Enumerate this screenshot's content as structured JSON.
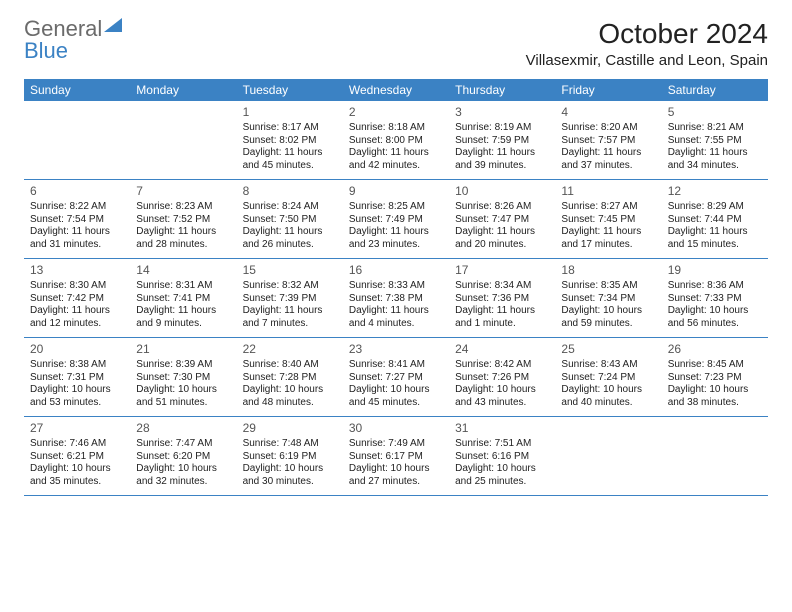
{
  "brand": {
    "part1": "General",
    "part2": "Blue"
  },
  "title": "October 2024",
  "location": "Villasexmir, Castille and Leon, Spain",
  "colors": {
    "header_bg": "#3b82c4",
    "header_text": "#ffffff",
    "border": "#3b82c4",
    "logo_gray": "#6b6b6b",
    "logo_blue": "#3b82c4"
  },
  "day_names": [
    "Sunday",
    "Monday",
    "Tuesday",
    "Wednesday",
    "Thursday",
    "Friday",
    "Saturday"
  ],
  "weeks": [
    [
      null,
      null,
      {
        "n": "1",
        "sr": "Sunrise: 8:17 AM",
        "ss": "Sunset: 8:02 PM",
        "dl": "Daylight: 11 hours and 45 minutes."
      },
      {
        "n": "2",
        "sr": "Sunrise: 8:18 AM",
        "ss": "Sunset: 8:00 PM",
        "dl": "Daylight: 11 hours and 42 minutes."
      },
      {
        "n": "3",
        "sr": "Sunrise: 8:19 AM",
        "ss": "Sunset: 7:59 PM",
        "dl": "Daylight: 11 hours and 39 minutes."
      },
      {
        "n": "4",
        "sr": "Sunrise: 8:20 AM",
        "ss": "Sunset: 7:57 PM",
        "dl": "Daylight: 11 hours and 37 minutes."
      },
      {
        "n": "5",
        "sr": "Sunrise: 8:21 AM",
        "ss": "Sunset: 7:55 PM",
        "dl": "Daylight: 11 hours and 34 minutes."
      }
    ],
    [
      {
        "n": "6",
        "sr": "Sunrise: 8:22 AM",
        "ss": "Sunset: 7:54 PM",
        "dl": "Daylight: 11 hours and 31 minutes."
      },
      {
        "n": "7",
        "sr": "Sunrise: 8:23 AM",
        "ss": "Sunset: 7:52 PM",
        "dl": "Daylight: 11 hours and 28 minutes."
      },
      {
        "n": "8",
        "sr": "Sunrise: 8:24 AM",
        "ss": "Sunset: 7:50 PM",
        "dl": "Daylight: 11 hours and 26 minutes."
      },
      {
        "n": "9",
        "sr": "Sunrise: 8:25 AM",
        "ss": "Sunset: 7:49 PM",
        "dl": "Daylight: 11 hours and 23 minutes."
      },
      {
        "n": "10",
        "sr": "Sunrise: 8:26 AM",
        "ss": "Sunset: 7:47 PM",
        "dl": "Daylight: 11 hours and 20 minutes."
      },
      {
        "n": "11",
        "sr": "Sunrise: 8:27 AM",
        "ss": "Sunset: 7:45 PM",
        "dl": "Daylight: 11 hours and 17 minutes."
      },
      {
        "n": "12",
        "sr": "Sunrise: 8:29 AM",
        "ss": "Sunset: 7:44 PM",
        "dl": "Daylight: 11 hours and 15 minutes."
      }
    ],
    [
      {
        "n": "13",
        "sr": "Sunrise: 8:30 AM",
        "ss": "Sunset: 7:42 PM",
        "dl": "Daylight: 11 hours and 12 minutes."
      },
      {
        "n": "14",
        "sr": "Sunrise: 8:31 AM",
        "ss": "Sunset: 7:41 PM",
        "dl": "Daylight: 11 hours and 9 minutes."
      },
      {
        "n": "15",
        "sr": "Sunrise: 8:32 AM",
        "ss": "Sunset: 7:39 PM",
        "dl": "Daylight: 11 hours and 7 minutes."
      },
      {
        "n": "16",
        "sr": "Sunrise: 8:33 AM",
        "ss": "Sunset: 7:38 PM",
        "dl": "Daylight: 11 hours and 4 minutes."
      },
      {
        "n": "17",
        "sr": "Sunrise: 8:34 AM",
        "ss": "Sunset: 7:36 PM",
        "dl": "Daylight: 11 hours and 1 minute."
      },
      {
        "n": "18",
        "sr": "Sunrise: 8:35 AM",
        "ss": "Sunset: 7:34 PM",
        "dl": "Daylight: 10 hours and 59 minutes."
      },
      {
        "n": "19",
        "sr": "Sunrise: 8:36 AM",
        "ss": "Sunset: 7:33 PM",
        "dl": "Daylight: 10 hours and 56 minutes."
      }
    ],
    [
      {
        "n": "20",
        "sr": "Sunrise: 8:38 AM",
        "ss": "Sunset: 7:31 PM",
        "dl": "Daylight: 10 hours and 53 minutes."
      },
      {
        "n": "21",
        "sr": "Sunrise: 8:39 AM",
        "ss": "Sunset: 7:30 PM",
        "dl": "Daylight: 10 hours and 51 minutes."
      },
      {
        "n": "22",
        "sr": "Sunrise: 8:40 AM",
        "ss": "Sunset: 7:28 PM",
        "dl": "Daylight: 10 hours and 48 minutes."
      },
      {
        "n": "23",
        "sr": "Sunrise: 8:41 AM",
        "ss": "Sunset: 7:27 PM",
        "dl": "Daylight: 10 hours and 45 minutes."
      },
      {
        "n": "24",
        "sr": "Sunrise: 8:42 AM",
        "ss": "Sunset: 7:26 PM",
        "dl": "Daylight: 10 hours and 43 minutes."
      },
      {
        "n": "25",
        "sr": "Sunrise: 8:43 AM",
        "ss": "Sunset: 7:24 PM",
        "dl": "Daylight: 10 hours and 40 minutes."
      },
      {
        "n": "26",
        "sr": "Sunrise: 8:45 AM",
        "ss": "Sunset: 7:23 PM",
        "dl": "Daylight: 10 hours and 38 minutes."
      }
    ],
    [
      {
        "n": "27",
        "sr": "Sunrise: 7:46 AM",
        "ss": "Sunset: 6:21 PM",
        "dl": "Daylight: 10 hours and 35 minutes."
      },
      {
        "n": "28",
        "sr": "Sunrise: 7:47 AM",
        "ss": "Sunset: 6:20 PM",
        "dl": "Daylight: 10 hours and 32 minutes."
      },
      {
        "n": "29",
        "sr": "Sunrise: 7:48 AM",
        "ss": "Sunset: 6:19 PM",
        "dl": "Daylight: 10 hours and 30 minutes."
      },
      {
        "n": "30",
        "sr": "Sunrise: 7:49 AM",
        "ss": "Sunset: 6:17 PM",
        "dl": "Daylight: 10 hours and 27 minutes."
      },
      {
        "n": "31",
        "sr": "Sunrise: 7:51 AM",
        "ss": "Sunset: 6:16 PM",
        "dl": "Daylight: 10 hours and 25 minutes."
      },
      null,
      null
    ]
  ]
}
